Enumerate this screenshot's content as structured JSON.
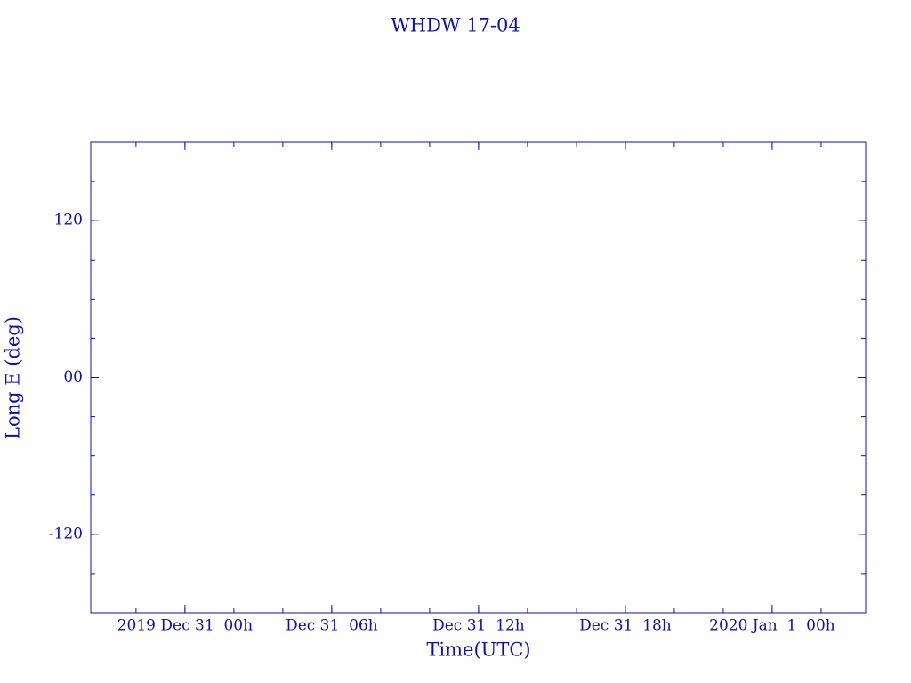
{
  "chart_data": {
    "type": "line",
    "title": "WHDW 17-04",
    "x_label": "Time(UTC)",
    "y_label": "Long E (deg)",
    "xlim": [
      -3.85,
      27.82
    ],
    "xticks": [
      {
        "value": 0,
        "label": "2019 Dec 31  00h"
      },
      {
        "value": 6,
        "label": "Dec 31  06h"
      },
      {
        "value": 12,
        "label": "Dec 31  12h"
      },
      {
        "value": 18,
        "label": "Dec 31  18h"
      },
      {
        "value": 24,
        "label": "2020 Jan  1  00h"
      }
    ],
    "ylim": [
      -180,
      180
    ],
    "yticks": [
      -120,
      {
        "value": 0,
        "label": "00"
      },
      120
    ],
    "color": "#1010a0"
  }
}
